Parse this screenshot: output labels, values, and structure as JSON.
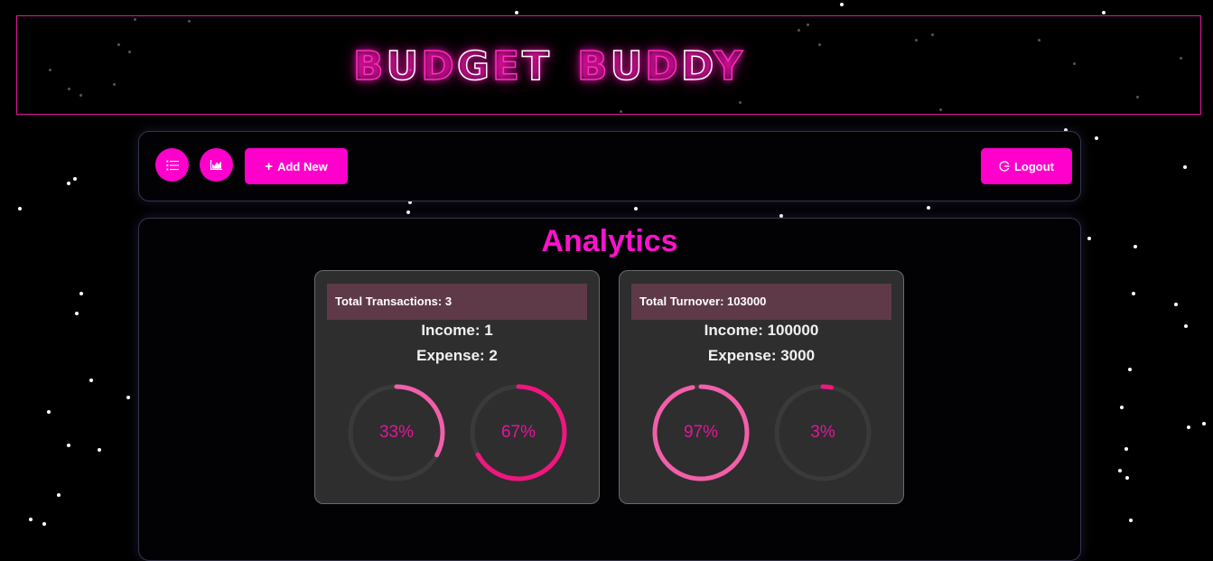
{
  "app": {
    "logo_left": [
      "B",
      "U",
      "D",
      "G",
      "E",
      "T"
    ],
    "logo_right": [
      "B",
      "U",
      "D",
      "D",
      "Y"
    ]
  },
  "toolbar": {
    "list_icon": "list-icon",
    "chart_icon": "area-chart-icon",
    "add_new_label": "Add New",
    "add_new_icon": "plus-icon",
    "logout_label": "Logout",
    "logout_icon": "logout-icon"
  },
  "analytics": {
    "title": "Analytics",
    "cards": [
      {
        "header": "Total Transactions: 3",
        "income": "Income: 1",
        "expense": "Expense: 2",
        "income_percent": 33,
        "expense_percent": 67,
        "income_label": "33%",
        "expense_label": "67%"
      },
      {
        "header": "Total Turnover: 103000",
        "income": "Income: 100000",
        "expense": "Expense: 3000",
        "income_percent": 97,
        "expense_percent": 3,
        "income_label": "97%",
        "expense_label": "3%"
      }
    ]
  },
  "colors": {
    "accent": "#ff00cc",
    "income_ring": "#f25fa9",
    "expense_ring": "#f0167f",
    "ring_track": "#3a3a3a",
    "title": "#ff11cc"
  }
}
